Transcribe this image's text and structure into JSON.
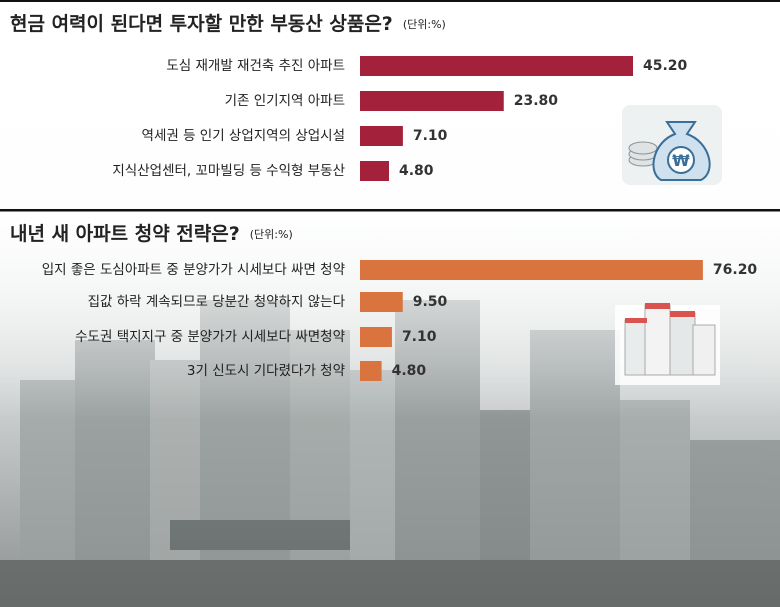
{
  "chart_data": [
    {
      "type": "bar",
      "orientation": "horizontal",
      "title": "현금 여력이 된다면 투자할 만한 부동산 상품은?",
      "unit": "(단위:%)",
      "categories": [
        "도심 재개발 재건축 추진 아파트",
        "기존 인기지역 아파트",
        "역세권 등 인기 상업지역의 상업시설",
        "지식산업센터, 꼬마빌딩 등 수익형 부동산"
      ],
      "values": [
        45.2,
        23.8,
        7.1,
        4.8
      ],
      "value_labels": [
        "45.20",
        "23.80",
        "7.10",
        "4.80"
      ],
      "color": "#a3213a"
    },
    {
      "type": "bar",
      "orientation": "horizontal",
      "title": "내년 새 아파트 청약 전략은?",
      "unit": "(단위:%)",
      "categories": [
        "입지 좋은 도심아파트 중 분양가가 시세보다 싸면 청약",
        "집값 하락 계속되므로 당분간 청약하지 않는다",
        "수도권 택지지구 중 분양가가 시세보다 싸면청약",
        "3기 신도시 기다렸다가 청약"
      ],
      "values": [
        76.2,
        9.5,
        7.1,
        4.8
      ],
      "value_labels": [
        "76.20",
        "9.50",
        "7.10",
        "4.80"
      ],
      "color": "#d9743f"
    }
  ]
}
